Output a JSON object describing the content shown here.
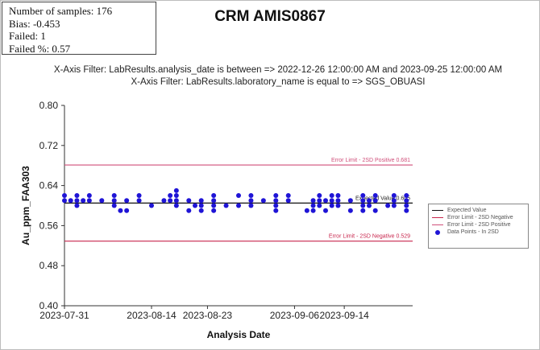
{
  "stats": {
    "samples": "Number of samples: 176",
    "bias": "Bias: -0.453",
    "failed": "Failed: 1",
    "failed_pct": "Failed %: 0.57"
  },
  "filters": [
    "X-Axis Filter: LabResults.analysis_date is between => 2022-12-26 12:00:00 AM and 2023-09-25 12:00:00 AM",
    "X-Axis Filter: LabResults.laboratory_name is equal to => SGS_OBUASI"
  ],
  "colors": {
    "expected": "#111111",
    "error_neg": "#c8264d",
    "error_pos": "#d04f7a",
    "points": "#1f14d6"
  },
  "legend": [
    {
      "label": "Expected Value",
      "type": "line",
      "color": "#111111"
    },
    {
      "label": "Error Limit - 2SD Negative",
      "type": "line",
      "color": "#c8264d"
    },
    {
      "label": "Error Limit - 2SD Positive",
      "type": "line",
      "color": "#d04f7a"
    },
    {
      "label": "Data Points - In 2SD",
      "type": "dot",
      "color": "#1f14d6"
    }
  ],
  "chart_data": {
    "type": "scatter",
    "title": "CRM AMIS0867",
    "xlabel": "Analysis Date",
    "ylabel": "Au_ppm_FAA303",
    "ylim": [
      0.4,
      0.8
    ],
    "yticks": [
      "0.80",
      "0.72",
      "0.64",
      "0.56",
      "0.48",
      "0.40"
    ],
    "xlim": [
      "2023-07-31",
      "2023-09-25"
    ],
    "xticks": [
      "2023-07-31",
      "2023-08-14",
      "2023-08-23",
      "2023-09-06",
      "2023-09-14"
    ],
    "grid": false,
    "reference_lines": [
      {
        "name": "Expected Value",
        "label": "Expected Value 0.605",
        "value": 0.605
      },
      {
        "name": "Error Limit - 2SD Positive",
        "label": "Error Limit - 2SD Positive 0.681",
        "value": 0.681
      },
      {
        "name": "Error Limit - 2SD Negative",
        "label": "Error Limit - 2SD Negative 0.529",
        "value": 0.529
      }
    ],
    "series": [
      {
        "name": "Data Points - In 2SD",
        "points": [
          {
            "x": "2023-07-31",
            "y": 0.62
          },
          {
            "x": "2023-07-31",
            "y": 0.61
          },
          {
            "x": "2023-08-01",
            "y": 0.61
          },
          {
            "x": "2023-08-02",
            "y": 0.62
          },
          {
            "x": "2023-08-02",
            "y": 0.61
          },
          {
            "x": "2023-08-02",
            "y": 0.6
          },
          {
            "x": "2023-08-03",
            "y": 0.61
          },
          {
            "x": "2023-08-04",
            "y": 0.62
          },
          {
            "x": "2023-08-04",
            "y": 0.61
          },
          {
            "x": "2023-08-06",
            "y": 0.61
          },
          {
            "x": "2023-08-08",
            "y": 0.62
          },
          {
            "x": "2023-08-08",
            "y": 0.61
          },
          {
            "x": "2023-08-08",
            "y": 0.6
          },
          {
            "x": "2023-08-09",
            "y": 0.59
          },
          {
            "x": "2023-08-10",
            "y": 0.61
          },
          {
            "x": "2023-08-10",
            "y": 0.59
          },
          {
            "x": "2023-08-12",
            "y": 0.62
          },
          {
            "x": "2023-08-12",
            "y": 0.61
          },
          {
            "x": "2023-08-14",
            "y": 0.6
          },
          {
            "x": "2023-08-16",
            "y": 0.61
          },
          {
            "x": "2023-08-17",
            "y": 0.62
          },
          {
            "x": "2023-08-17",
            "y": 0.61
          },
          {
            "x": "2023-08-18",
            "y": 0.63
          },
          {
            "x": "2023-08-18",
            "y": 0.62
          },
          {
            "x": "2023-08-18",
            "y": 0.61
          },
          {
            "x": "2023-08-18",
            "y": 0.6
          },
          {
            "x": "2023-08-20",
            "y": 0.61
          },
          {
            "x": "2023-08-20",
            "y": 0.59
          },
          {
            "x": "2023-08-21",
            "y": 0.6
          },
          {
            "x": "2023-08-22",
            "y": 0.61
          },
          {
            "x": "2023-08-22",
            "y": 0.6
          },
          {
            "x": "2023-08-22",
            "y": 0.59
          },
          {
            "x": "2023-08-24",
            "y": 0.62
          },
          {
            "x": "2023-08-24",
            "y": 0.61
          },
          {
            "x": "2023-08-24",
            "y": 0.6
          },
          {
            "x": "2023-08-24",
            "y": 0.59
          },
          {
            "x": "2023-08-26",
            "y": 0.6
          },
          {
            "x": "2023-08-28",
            "y": 0.62
          },
          {
            "x": "2023-08-28",
            "y": 0.6
          },
          {
            "x": "2023-08-30",
            "y": 0.62
          },
          {
            "x": "2023-08-30",
            "y": 0.61
          },
          {
            "x": "2023-08-30",
            "y": 0.6
          },
          {
            "x": "2023-09-01",
            "y": 0.61
          },
          {
            "x": "2023-09-03",
            "y": 0.62
          },
          {
            "x": "2023-09-03",
            "y": 0.61
          },
          {
            "x": "2023-09-03",
            "y": 0.6
          },
          {
            "x": "2023-09-03",
            "y": 0.59
          },
          {
            "x": "2023-09-05",
            "y": 0.62
          },
          {
            "x": "2023-09-05",
            "y": 0.61
          },
          {
            "x": "2023-09-08",
            "y": 0.59
          },
          {
            "x": "2023-09-09",
            "y": 0.61
          },
          {
            "x": "2023-09-09",
            "y": 0.6
          },
          {
            "x": "2023-09-09",
            "y": 0.59
          },
          {
            "x": "2023-09-10",
            "y": 0.62
          },
          {
            "x": "2023-09-10",
            "y": 0.61
          },
          {
            "x": "2023-09-10",
            "y": 0.6
          },
          {
            "x": "2023-09-11",
            "y": 0.61
          },
          {
            "x": "2023-09-11",
            "y": 0.59
          },
          {
            "x": "2023-09-12",
            "y": 0.62
          },
          {
            "x": "2023-09-12",
            "y": 0.61
          },
          {
            "x": "2023-09-12",
            "y": 0.6
          },
          {
            "x": "2023-09-13",
            "y": 0.62
          },
          {
            "x": "2023-09-13",
            "y": 0.61
          },
          {
            "x": "2023-09-13",
            "y": 0.6
          },
          {
            "x": "2023-09-15",
            "y": 0.61
          },
          {
            "x": "2023-09-15",
            "y": 0.59
          },
          {
            "x": "2023-09-17",
            "y": 0.62
          },
          {
            "x": "2023-09-17",
            "y": 0.61
          },
          {
            "x": "2023-09-17",
            "y": 0.6
          },
          {
            "x": "2023-09-17",
            "y": 0.59
          },
          {
            "x": "2023-09-18",
            "y": 0.61
          },
          {
            "x": "2023-09-18",
            "y": 0.6
          },
          {
            "x": "2023-09-19",
            "y": 0.62
          },
          {
            "x": "2023-09-19",
            "y": 0.61
          },
          {
            "x": "2023-09-19",
            "y": 0.59
          },
          {
            "x": "2023-09-21",
            "y": 0.6
          },
          {
            "x": "2023-09-22",
            "y": 0.62
          },
          {
            "x": "2023-09-22",
            "y": 0.61
          },
          {
            "x": "2023-09-22",
            "y": 0.6
          },
          {
            "x": "2023-09-24",
            "y": 0.62
          },
          {
            "x": "2023-09-24",
            "y": 0.61
          },
          {
            "x": "2023-09-24",
            "y": 0.6
          },
          {
            "x": "2023-09-24",
            "y": 0.59
          }
        ]
      }
    ]
  }
}
